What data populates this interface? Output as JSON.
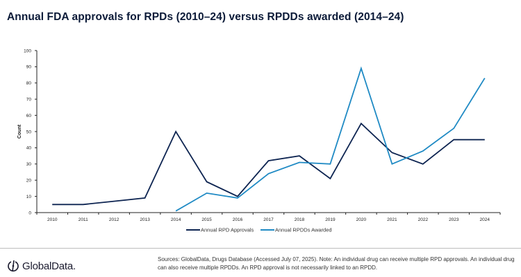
{
  "title": "Annual FDA approvals for RPDs (2010–24) versus RPDDs awarded (2014–24)",
  "chart_data": {
    "type": "line",
    "title": "Annual FDA approvals for RPDs (2010–24) versus RPDDs awarded (2014–24)",
    "xlabel": "",
    "ylabel": "Count",
    "ylim": [
      0,
      100
    ],
    "yticks": [
      0,
      10,
      20,
      30,
      40,
      50,
      60,
      70,
      80,
      90,
      100
    ],
    "grid": false,
    "legend_position": "bottom-center",
    "x": [
      "2010",
      "2011",
      "2012",
      "2013",
      "2014",
      "2015",
      "2016",
      "2017",
      "2018",
      "2019",
      "2020",
      "2021",
      "2022",
      "2023",
      "2024"
    ],
    "series": [
      {
        "name": "Annual RPD Approvals",
        "color": "#0d2451",
        "values": [
          5,
          5,
          7,
          9,
          50,
          19,
          10,
          32,
          35,
          21,
          55,
          37,
          30,
          45,
          45
        ]
      },
      {
        "name": "Annual RPDDs Awarded",
        "color": "#1f8ac4",
        "values": [
          null,
          null,
          null,
          null,
          1,
          12,
          9,
          24,
          31,
          30,
          89,
          30,
          38,
          52,
          83
        ]
      }
    ]
  },
  "footer": {
    "logo_text": "GlobalData.",
    "source": "Sources: GlobalData, Drugs Database (Accessed July 07, 2025). Note: An individual drug can receive multiple RPD approvals. An individual drug can also receive multiple RPDDs. An RPD approval is not necessarily linked to an RPDD."
  }
}
